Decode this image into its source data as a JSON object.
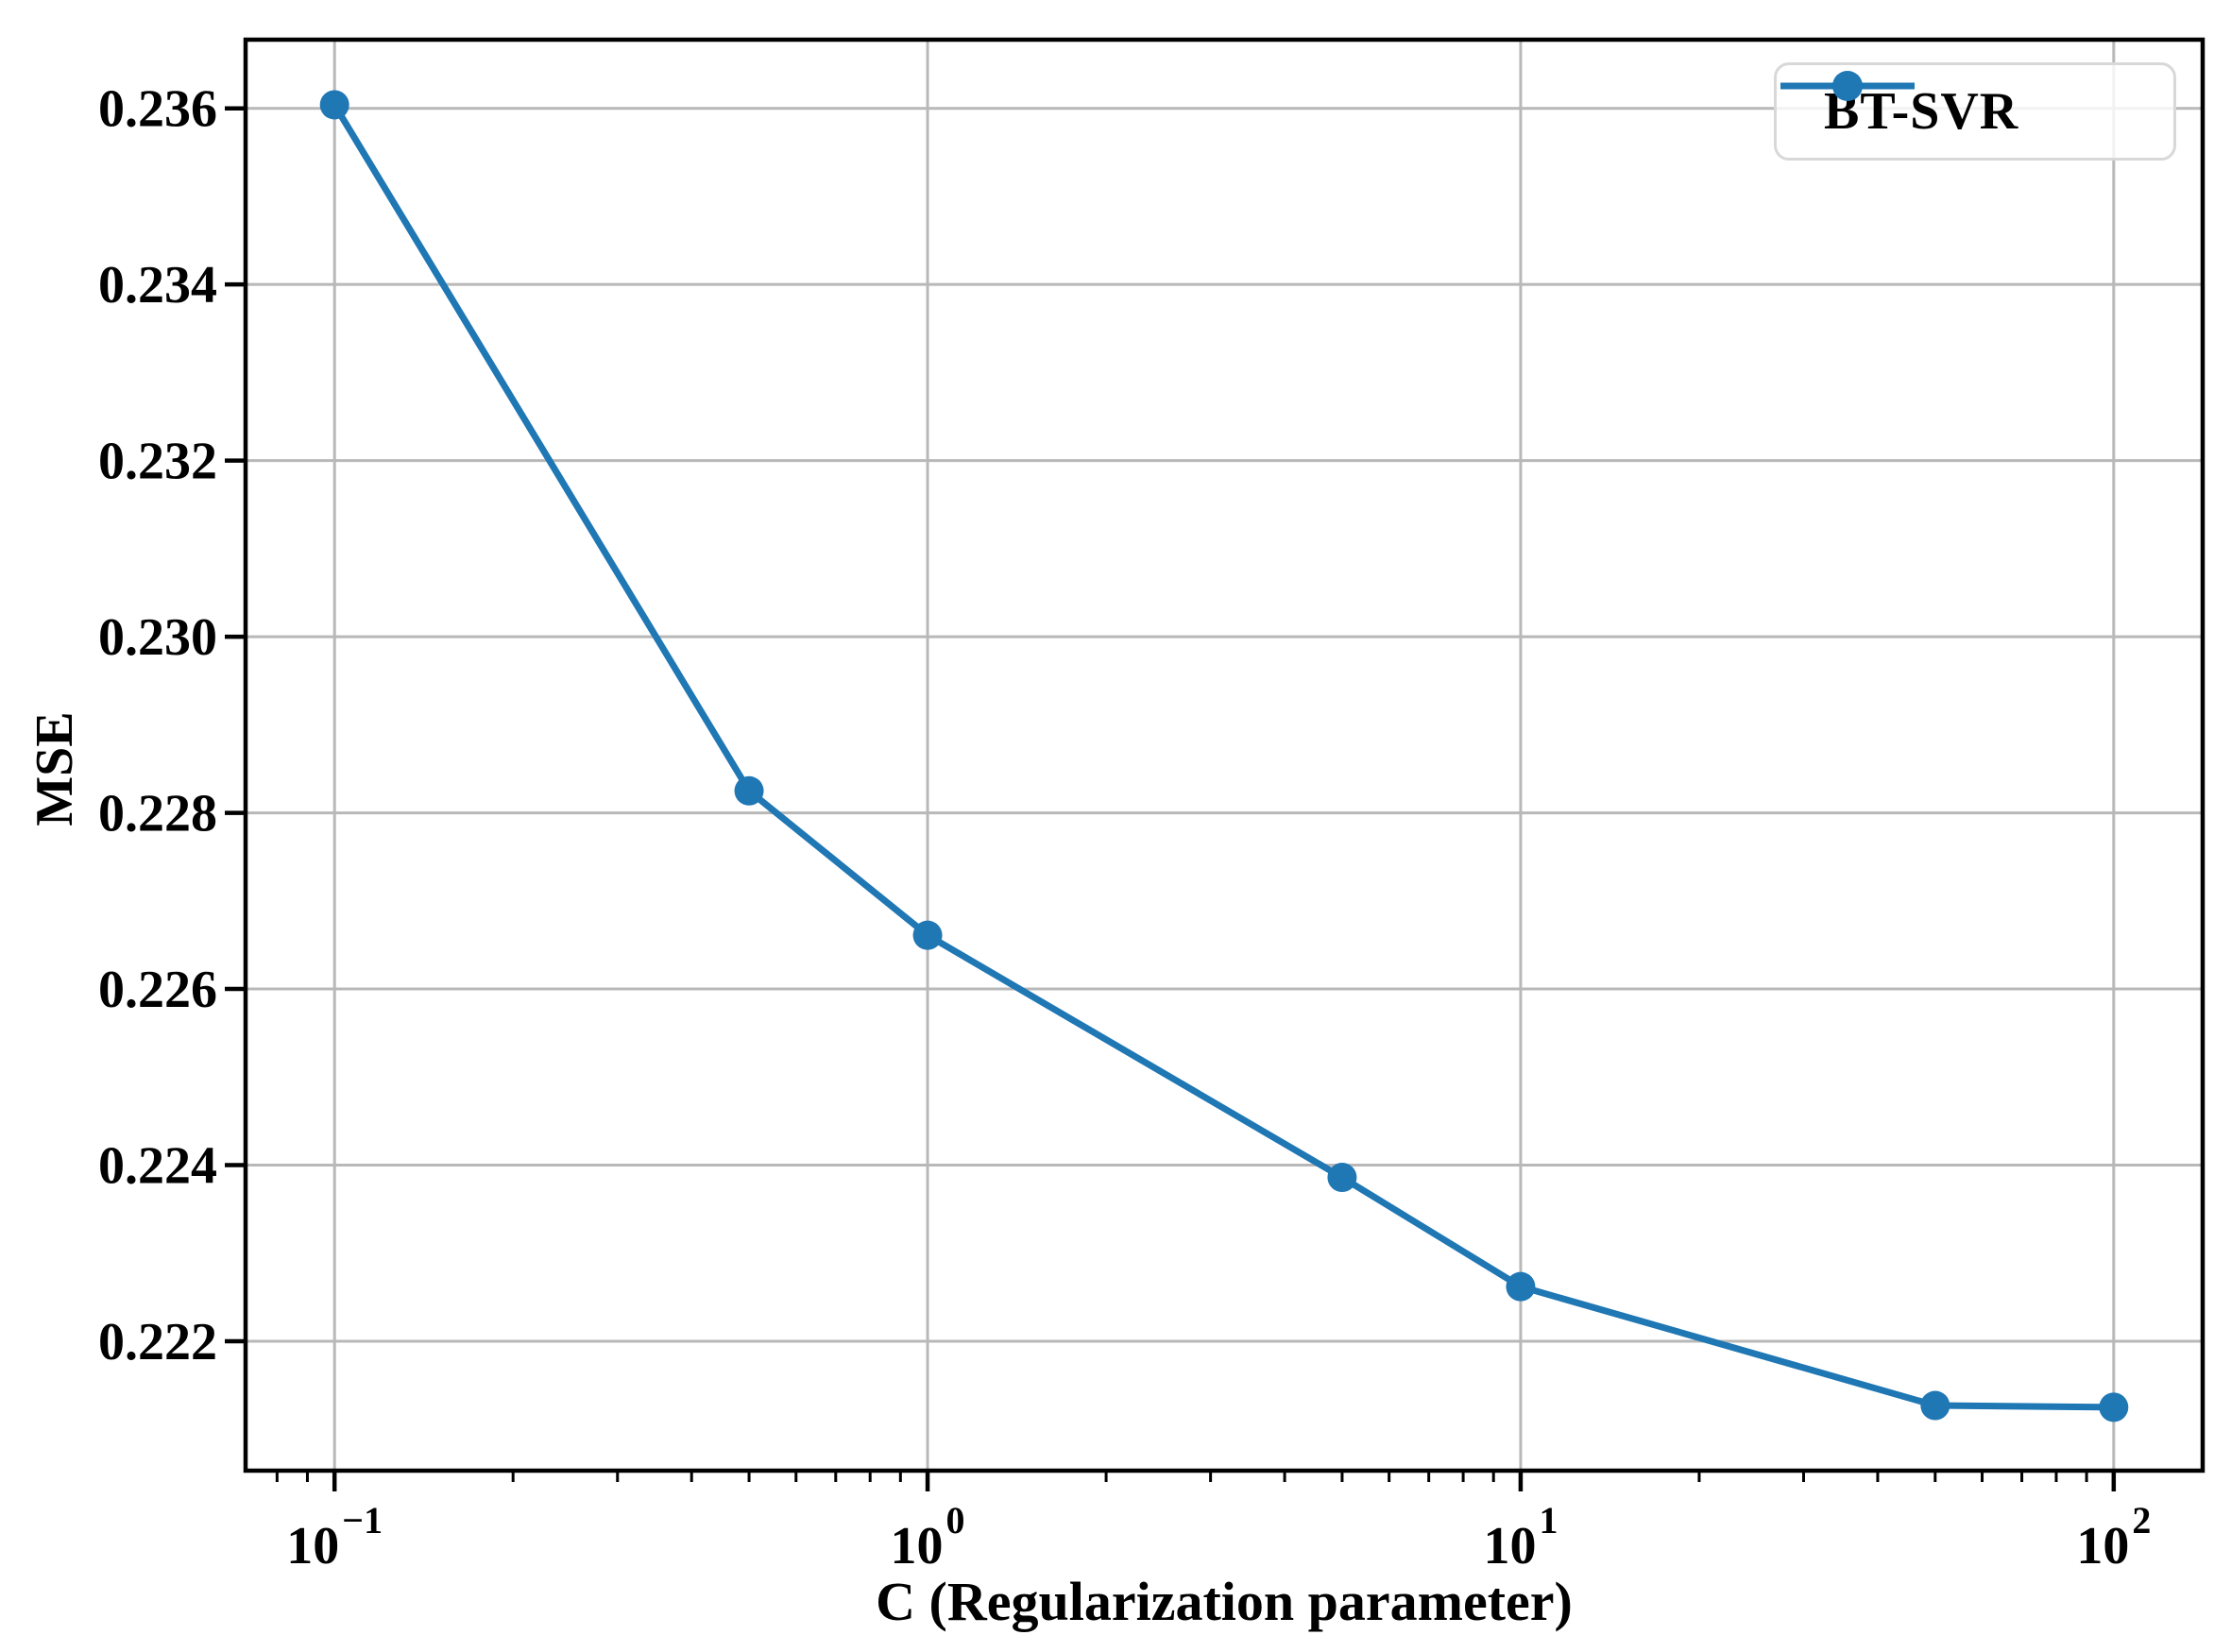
{
  "figure": {
    "background": "#ffffff"
  },
  "chart_data": {
    "type": "line",
    "title": "",
    "xlabel": "C (Regularization parameter)",
    "ylabel": "MSE",
    "x_scale": "log",
    "grid": true,
    "legend_position": "upper right",
    "x": [
      0.1,
      0.5,
      1,
      5,
      10,
      50,
      100
    ],
    "series": [
      {
        "name": "BT-SVR",
        "color": "#1f77b4",
        "marker": "circle",
        "values": [
          0.23604,
          0.22825,
          0.22661,
          0.22386,
          0.22262,
          0.22127,
          0.22125
        ]
      }
    ],
    "xlim_log10": [
      -1.15,
      2.15
    ],
    "ylim": [
      0.22053,
      0.23678
    ],
    "x_ticks": [
      {
        "value": 0.1,
        "base": "10",
        "exp": "−1"
      },
      {
        "value": 1,
        "base": "10",
        "exp": "0"
      },
      {
        "value": 10,
        "base": "10",
        "exp": "1"
      },
      {
        "value": 100,
        "base": "10",
        "exp": "2"
      }
    ],
    "x_minor_ticks": [
      0.08,
      0.09,
      0.2,
      0.3,
      0.4,
      0.5,
      0.6,
      0.7,
      0.8,
      0.9,
      2,
      3,
      4,
      5,
      6,
      7,
      8,
      9,
      20,
      30,
      40,
      50,
      60,
      70,
      80,
      90
    ],
    "y_ticks": [
      {
        "value": 0.222,
        "label": "0.222"
      },
      {
        "value": 0.224,
        "label": "0.224"
      },
      {
        "value": 0.226,
        "label": "0.226"
      },
      {
        "value": 0.228,
        "label": "0.228"
      },
      {
        "value": 0.23,
        "label": "0.230"
      },
      {
        "value": 0.232,
        "label": "0.232"
      },
      {
        "value": 0.234,
        "label": "0.234"
      },
      {
        "value": 0.236,
        "label": "0.236"
      }
    ],
    "colors": {
      "line": "#1f77b4",
      "grid": "#b8b8b8",
      "axis": "#000000",
      "legend_border": "#d8d8d8"
    }
  }
}
